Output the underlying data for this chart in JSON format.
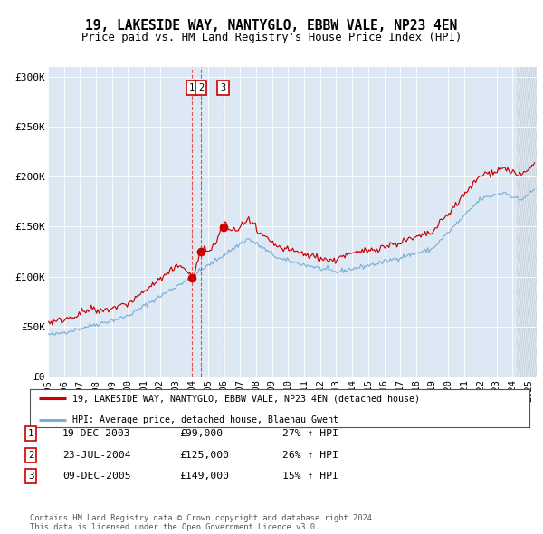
{
  "title": "19, LAKESIDE WAY, NANTYGLO, EBBW VALE, NP23 4EN",
  "subtitle": "Price paid vs. HM Land Registry's House Price Index (HPI)",
  "legend_line1": "19, LAKESIDE WAY, NANTYGLO, EBBW VALE, NP23 4EN (detached house)",
  "legend_line2": "HPI: Average price, detached house, Blaenau Gwent",
  "footer1": "Contains HM Land Registry data © Crown copyright and database right 2024.",
  "footer2": "This data is licensed under the Open Government Licence v3.0.",
  "transactions": [
    {
      "num": 1,
      "date": "19-DEC-2003",
      "price": 99000,
      "hpi_pct": "27% ↑ HPI"
    },
    {
      "num": 2,
      "date": "23-JUL-2004",
      "price": 125000,
      "hpi_pct": "26% ↑ HPI"
    },
    {
      "num": 3,
      "date": "09-DEC-2005",
      "price": 149000,
      "hpi_pct": "15% ↑ HPI"
    }
  ],
  "transaction_dates_decimal": [
    2003.967,
    2004.558,
    2005.942
  ],
  "transaction_prices": [
    99000,
    125000,
    149000
  ],
  "background_color": "#dce9f5",
  "red_line_color": "#cc0000",
  "blue_line_color": "#7bafd4",
  "vline_color": "#dd3333",
  "marker_color": "#cc0000",
  "ylim": [
    0,
    310000
  ],
  "xlim_start": 1995.0,
  "xlim_end": 2025.5,
  "yticks": [
    0,
    50000,
    100000,
    150000,
    200000,
    250000,
    300000
  ],
  "ytick_labels": [
    "£0",
    "£50K",
    "£100K",
    "£150K",
    "£200K",
    "£250K",
    "£300K"
  ],
  "xtick_years": [
    1995,
    1996,
    1997,
    1998,
    1999,
    2000,
    2001,
    2002,
    2003,
    2004,
    2005,
    2006,
    2007,
    2008,
    2009,
    2010,
    2011,
    2012,
    2013,
    2014,
    2015,
    2016,
    2017,
    2018,
    2019,
    2020,
    2021,
    2022,
    2023,
    2024,
    2025
  ]
}
